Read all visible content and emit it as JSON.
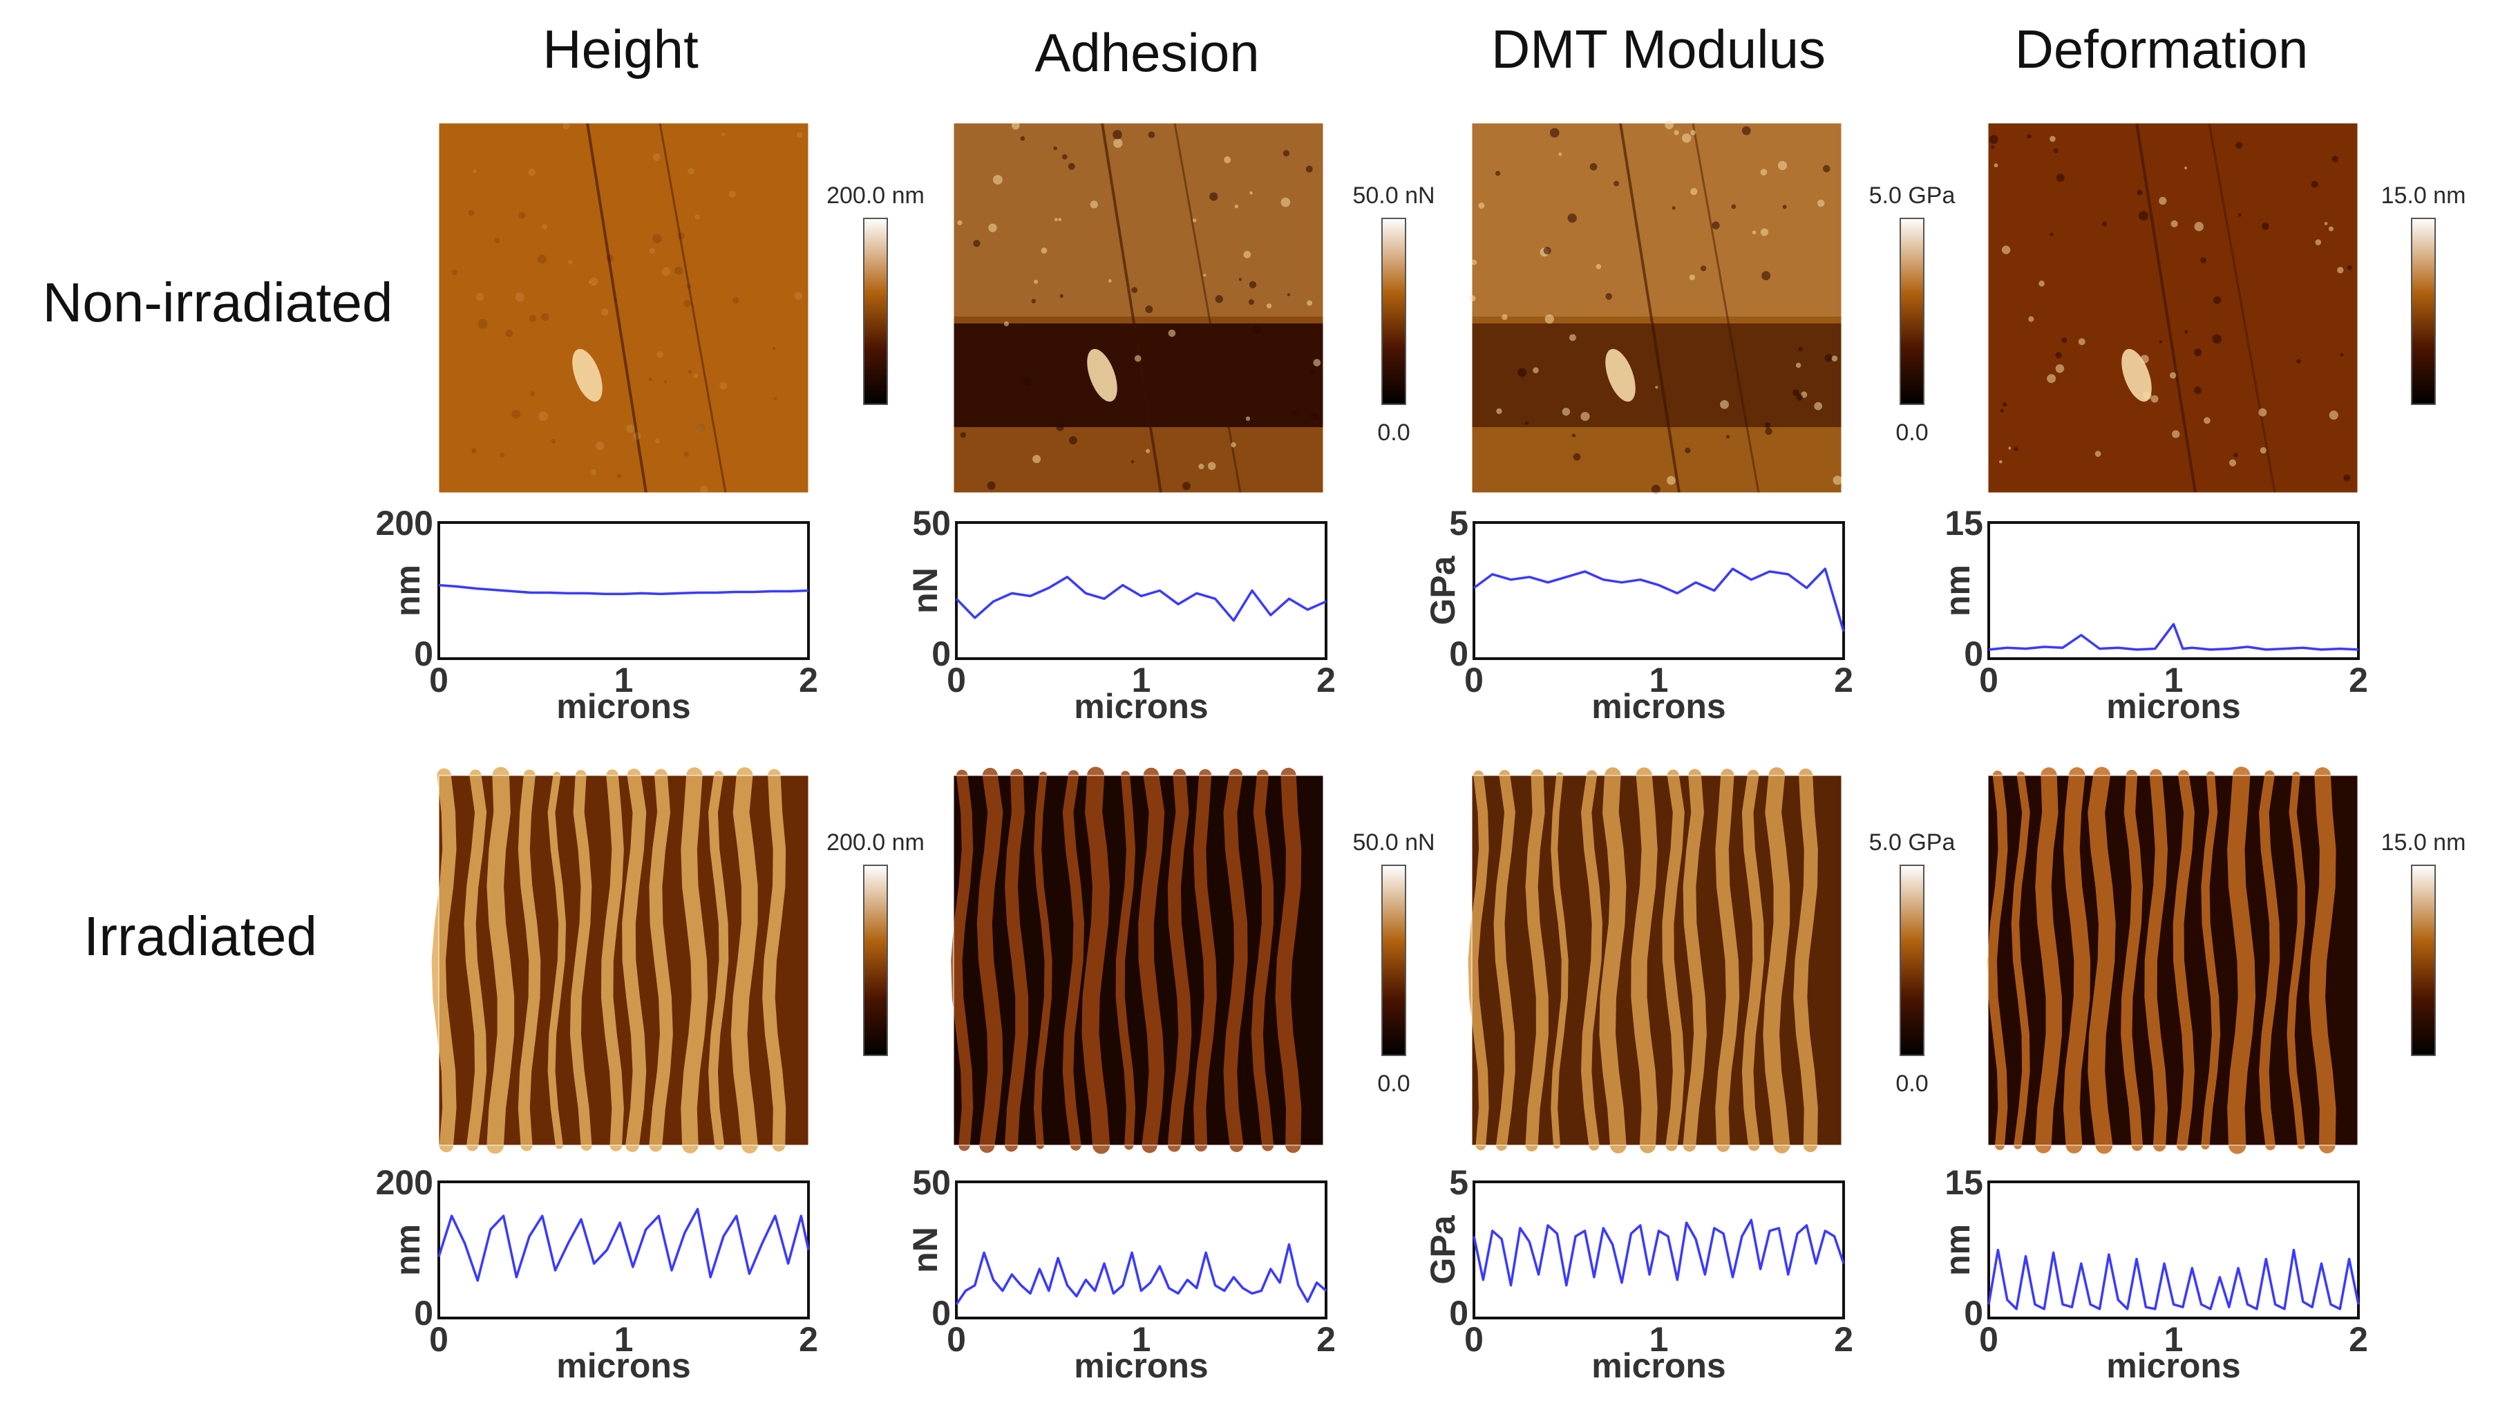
{
  "figure": {
    "columns": [
      "Height",
      "Adhesion",
      "DMT Modulus",
      "Deformation"
    ],
    "rows": [
      "Non-irradiated",
      "Irradiated"
    ],
    "colorbars": [
      {
        "max_label": "200.0 nm",
        "min_label": ""
      },
      {
        "max_label": "50.0 nN",
        "min_label": "0.0"
      },
      {
        "max_label": "5.0 GPa",
        "min_label": "0.0"
      },
      {
        "max_label": "15.0 nm",
        "min_label": ""
      }
    ],
    "colors": {
      "profile_line": "#3a3aff",
      "afm_dark": "#1a0500",
      "afm_mid": "#9a4a10",
      "afm_bright": "#f4d9a6"
    }
  },
  "chart_data": [
    {
      "type": "line",
      "panel": "Height / Non-irradiated",
      "xlabel": "microns",
      "ylabel": "nm",
      "xlim": [
        0,
        2
      ],
      "ylim": [
        0,
        200
      ],
      "xticks": [
        "0",
        "1",
        "2"
      ],
      "yticks": [
        "0",
        "200"
      ],
      "x": [
        0,
        0.1,
        0.2,
        0.3,
        0.4,
        0.5,
        0.6,
        0.7,
        0.8,
        0.9,
        1.0,
        1.1,
        1.2,
        1.3,
        1.4,
        1.5,
        1.6,
        1.7,
        1.8,
        1.9,
        2.0
      ],
      "y": [
        108,
        106,
        103,
        101,
        99,
        97,
        97,
        96,
        96,
        95,
        95,
        96,
        95,
        96,
        97,
        97,
        98,
        98,
        99,
        99,
        100
      ]
    },
    {
      "type": "line",
      "panel": "Adhesion / Non-irradiated",
      "xlabel": "microns",
      "ylabel": "nN",
      "xlim": [
        0,
        2
      ],
      "ylim": [
        0,
        50
      ],
      "xticks": [
        "0",
        "1",
        "2"
      ],
      "yticks": [
        "0",
        "50"
      ],
      "x": [
        0,
        0.1,
        0.2,
        0.3,
        0.4,
        0.5,
        0.6,
        0.7,
        0.8,
        0.9,
        1.0,
        1.1,
        1.2,
        1.3,
        1.4,
        1.5,
        1.6,
        1.7,
        1.8,
        1.9,
        2.0
      ],
      "y": [
        22,
        15,
        21,
        24,
        23,
        26,
        30,
        24,
        22,
        27,
        23,
        25,
        20,
        24,
        22,
        14,
        25,
        16,
        22,
        18,
        21
      ]
    },
    {
      "type": "line",
      "panel": "DMT Modulus / Non-irradiated",
      "xlabel": "microns",
      "ylabel": "GPa",
      "xlim": [
        0,
        2
      ],
      "ylim": [
        0,
        5
      ],
      "xticks": [
        "0",
        "1",
        "2"
      ],
      "yticks": [
        "0",
        "5"
      ],
      "x": [
        0,
        0.1,
        0.2,
        0.3,
        0.4,
        0.5,
        0.6,
        0.7,
        0.8,
        0.9,
        1.0,
        1.1,
        1.2,
        1.3,
        1.4,
        1.5,
        1.6,
        1.7,
        1.8,
        1.9,
        2.0
      ],
      "y": [
        2.6,
        3.1,
        2.9,
        3.0,
        2.8,
        3.0,
        3.2,
        2.9,
        2.8,
        2.9,
        2.7,
        2.4,
        2.8,
        2.5,
        3.3,
        2.9,
        3.2,
        3.1,
        2.6,
        3.3,
        1.0
      ]
    },
    {
      "type": "line",
      "panel": "Deformation / Non-irradiated",
      "xlabel": "microns",
      "ylabel": "nm",
      "xlim": [
        0,
        2
      ],
      "ylim": [
        0,
        15
      ],
      "xticks": [
        "0",
        "1",
        "2"
      ],
      "yticks": [
        "0",
        "15"
      ],
      "x": [
        0,
        0.1,
        0.2,
        0.3,
        0.4,
        0.5,
        0.6,
        0.7,
        0.8,
        0.9,
        1.0,
        1.05,
        1.1,
        1.2,
        1.3,
        1.4,
        1.5,
        1.6,
        1.7,
        1.8,
        1.9,
        2.0
      ],
      "y": [
        1.0,
        1.2,
        1.1,
        1.3,
        1.2,
        2.6,
        1.1,
        1.2,
        1.0,
        1.1,
        3.8,
        1.1,
        1.2,
        1.0,
        1.1,
        1.3,
        1.0,
        1.1,
        1.2,
        1.0,
        1.1,
        1.0
      ]
    },
    {
      "type": "line",
      "panel": "Height / Irradiated",
      "xlabel": "microns",
      "ylabel": "nm",
      "xlim": [
        0,
        2
      ],
      "ylim": [
        0,
        200
      ],
      "xticks": [
        "0",
        "1",
        "2"
      ],
      "yticks": [
        "0",
        "200"
      ],
      "x": [
        0,
        0.07,
        0.14,
        0.21,
        0.28,
        0.35,
        0.42,
        0.49,
        0.56,
        0.63,
        0.7,
        0.77,
        0.84,
        0.91,
        0.98,
        1.05,
        1.12,
        1.19,
        1.26,
        1.33,
        1.4,
        1.47,
        1.54,
        1.61,
        1.68,
        1.75,
        1.82,
        1.89,
        1.96,
        2.0
      ],
      "y": [
        90,
        150,
        110,
        55,
        130,
        150,
        60,
        120,
        150,
        70,
        110,
        145,
        80,
        100,
        140,
        75,
        130,
        150,
        70,
        125,
        160,
        60,
        120,
        150,
        65,
        110,
        150,
        80,
        150,
        100
      ]
    },
    {
      "type": "line",
      "panel": "Adhesion / Irradiated",
      "xlabel": "microns",
      "ylabel": "nN",
      "xlim": [
        0,
        2
      ],
      "ylim": [
        0,
        50
      ],
      "xticks": [
        "0",
        "1",
        "2"
      ],
      "yticks": [
        "0",
        "50"
      ],
      "x": [
        0,
        0.05,
        0.1,
        0.15,
        0.2,
        0.25,
        0.3,
        0.35,
        0.4,
        0.45,
        0.5,
        0.55,
        0.6,
        0.65,
        0.7,
        0.75,
        0.8,
        0.85,
        0.9,
        0.95,
        1.0,
        1.05,
        1.1,
        1.15,
        1.2,
        1.25,
        1.3,
        1.35,
        1.4,
        1.45,
        1.5,
        1.55,
        1.6,
        1.65,
        1.7,
        1.75,
        1.8,
        1.85,
        1.9,
        1.95,
        2.0
      ],
      "y": [
        5,
        10,
        12,
        24,
        14,
        10,
        16,
        12,
        9,
        18,
        10,
        22,
        12,
        8,
        14,
        10,
        20,
        9,
        12,
        24,
        10,
        13,
        19,
        11,
        9,
        14,
        11,
        24,
        12,
        10,
        15,
        11,
        9,
        10,
        18,
        13,
        27,
        12,
        6,
        13,
        10
      ]
    },
    {
      "type": "line",
      "panel": "DMT Modulus / Irradiated",
      "xlabel": "microns",
      "ylabel": "GPa",
      "xlim": [
        0,
        2
      ],
      "ylim": [
        0,
        5
      ],
      "xticks": [
        "0",
        "1",
        "2"
      ],
      "yticks": [
        "0",
        "5"
      ],
      "x": [
        0,
        0.05,
        0.1,
        0.15,
        0.2,
        0.25,
        0.3,
        0.35,
        0.4,
        0.45,
        0.5,
        0.55,
        0.6,
        0.65,
        0.7,
        0.75,
        0.8,
        0.85,
        0.9,
        0.95,
        1.0,
        1.05,
        1.1,
        1.15,
        1.2,
        1.25,
        1.3,
        1.35,
        1.4,
        1.45,
        1.5,
        1.55,
        1.6,
        1.65,
        1.7,
        1.75,
        1.8,
        1.85,
        1.9,
        1.95,
        2.0
      ],
      "y": [
        3.0,
        1.4,
        3.2,
        2.9,
        1.2,
        3.3,
        2.8,
        1.6,
        3.4,
        3.1,
        1.2,
        3.0,
        3.2,
        1.5,
        3.3,
        2.7,
        1.3,
        3.1,
        3.4,
        1.6,
        3.2,
        3.0,
        1.4,
        3.5,
        2.9,
        1.6,
        3.3,
        3.1,
        1.5,
        3.0,
        3.6,
        1.8,
        3.2,
        3.3,
        1.6,
        3.1,
        3.4,
        2.0,
        3.2,
        3.0,
        2.0
      ]
    },
    {
      "type": "line",
      "panel": "Deformation / Irradiated",
      "xlabel": "microns",
      "ylabel": "nm",
      "xlim": [
        0,
        2
      ],
      "ylim": [
        0,
        15
      ],
      "xticks": [
        "0",
        "1",
        "2"
      ],
      "yticks": [
        "0",
        "15"
      ],
      "x": [
        0,
        0.05,
        0.1,
        0.15,
        0.2,
        0.25,
        0.3,
        0.35,
        0.4,
        0.45,
        0.5,
        0.55,
        0.6,
        0.65,
        0.7,
        0.75,
        0.8,
        0.85,
        0.9,
        0.95,
        1.0,
        1.05,
        1.1,
        1.15,
        1.2,
        1.25,
        1.3,
        1.35,
        1.4,
        1.45,
        1.5,
        1.55,
        1.6,
        1.65,
        1.7,
        1.75,
        1.8,
        1.85,
        1.9,
        1.95,
        2.0
      ],
      "y": [
        1.5,
        7.5,
        2.0,
        1.0,
        6.8,
        1.5,
        1.0,
        7.2,
        1.5,
        1.2,
        6.0,
        1.5,
        1.0,
        7.0,
        2.0,
        1.0,
        6.5,
        1.2,
        1.0,
        6.0,
        1.5,
        1.2,
        5.5,
        1.5,
        1.0,
        4.5,
        1.2,
        5.5,
        1.5,
        1.0,
        6.5,
        1.5,
        1.0,
        7.5,
        1.8,
        1.2,
        6.0,
        1.5,
        1.0,
        6.5,
        1.5
      ]
    }
  ]
}
